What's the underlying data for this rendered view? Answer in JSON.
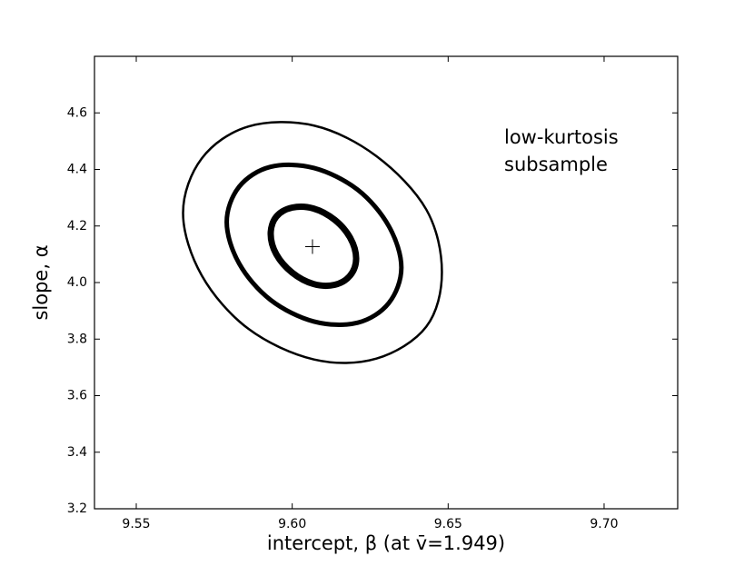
{
  "chart_data": {
    "type": "contour",
    "annotation": [
      "low-kurtosis",
      "subsample"
    ],
    "xlabel": "intercept, β  (at v̄=1.949)",
    "ylabel": "slope, α",
    "xlim": [
      9.5366,
      9.7236
    ],
    "ylim": [
      3.2,
      4.8
    ],
    "xticks": [
      9.55,
      {
        "value": 9.6,
        "label": "9.60"
      },
      9.65,
      {
        "value": 9.7,
        "label": "9.70"
      }
    ],
    "yticks": [
      3.2,
      3.4,
      3.6,
      3.8,
      {
        "value": 4,
        "label": "4.0"
      },
      4.2,
      4.4,
      4.6
    ],
    "marker": {
      "x": 9.6065,
      "y": 4.127,
      "color": "#000000"
    },
    "series": [
      {
        "color": "#000000",
        "linewidth": 2.5,
        "x": [
          9.648,
          9.643,
          9.627,
          9.607,
          9.586,
          9.571,
          9.565,
          9.571,
          9.586,
          9.607,
          9.627,
          9.643
        ],
        "values": [
          4.037,
          3.844,
          3.731,
          3.728,
          3.836,
          4.025,
          4.246,
          4.439,
          4.552,
          4.555,
          4.447,
          4.258
        ]
      },
      {
        "color": "#000000",
        "linewidth": 5,
        "x": [
          9.635,
          9.631,
          9.621,
          9.607,
          9.593,
          9.583,
          9.579,
          9.583,
          9.593,
          9.607,
          9.621,
          9.631
        ],
        "values": [
          4.053,
          3.928,
          3.858,
          3.862,
          3.939,
          4.067,
          4.214,
          4.339,
          4.409,
          4.405,
          4.328,
          4.199
        ]
      },
      {
        "color": "#000000",
        "linewidth": 7,
        "x": [
          9.6205,
          9.6186,
          9.6136,
          9.6068,
          9.6,
          9.5949,
          9.5931,
          9.5949,
          9.6,
          9.6068,
          9.6136,
          9.6186
        ],
        "values": [
          4.085,
          4.025,
          3.992,
          3.995,
          4.035,
          4.1,
          4.172,
          4.233,
          4.265,
          4.262,
          4.222,
          4.158
        ]
      }
    ]
  }
}
